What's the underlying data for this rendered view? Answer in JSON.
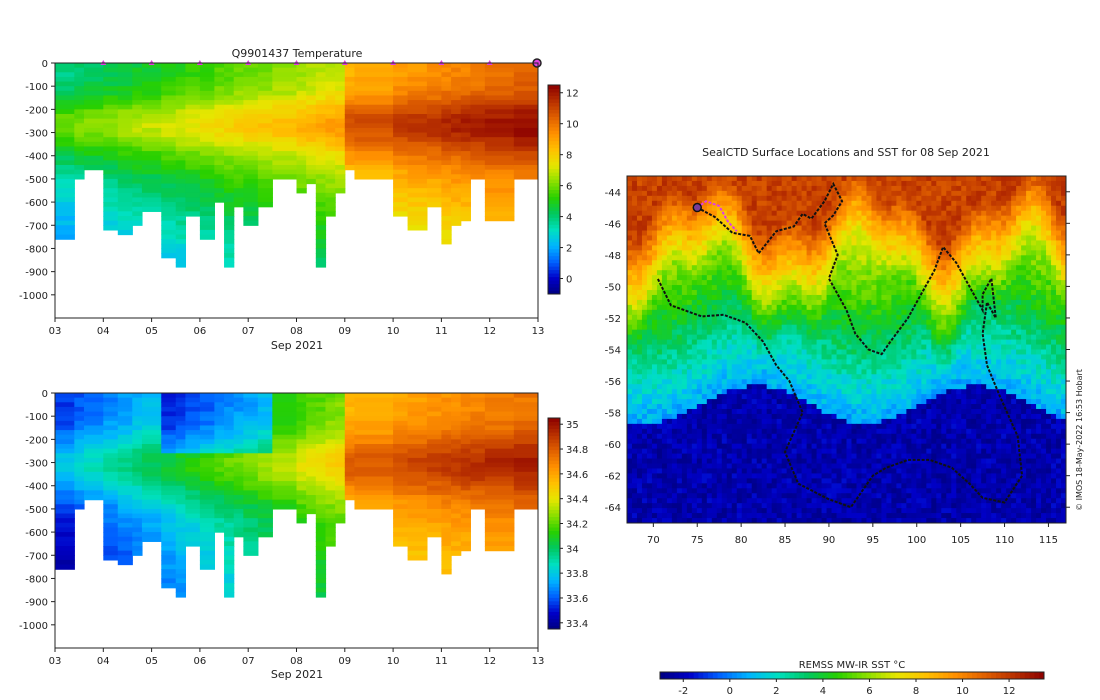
{
  "colors": {
    "jet": [
      "#000080",
      "#0000c8",
      "#0060ff",
      "#00b4ff",
      "#00e0c0",
      "#00c860",
      "#28d000",
      "#8ae000",
      "#e6e600",
      "#ffc000",
      "#ff9000",
      "#e06000",
      "#b83000",
      "#8c0000"
    ],
    "track": "#111111",
    "track_recent": "#e040e0",
    "marker": "#e040e0",
    "axis": "#222222",
    "surface_marker": "#7a3c99"
  },
  "chart_data": [
    {
      "id": "temperature-section",
      "type": "heatmap",
      "title": "Q9901437  Temperature",
      "xlabel": "Sep 2021",
      "ylabel": "",
      "x_ticks": [
        "03",
        "04",
        "05",
        "06",
        "07",
        "08",
        "09",
        "10",
        "11",
        "12",
        "13"
      ],
      "x_range": [
        3,
        13
      ],
      "y_ticks": [
        "0",
        "-100",
        "-200",
        "-300",
        "-400",
        "-500",
        "-600",
        "-700",
        "-800",
        "-900",
        "-1000"
      ],
      "y_range": [
        -1100,
        0
      ],
      "colorbar": {
        "min": -1,
        "max": 12.5,
        "ticks": [
          "12",
          "10",
          "8",
          "6",
          "4",
          "2",
          "0"
        ]
      },
      "surface_markers_day": [
        4,
        5,
        6,
        7,
        8,
        9,
        10,
        11,
        12
      ],
      "profiles": [
        {
          "t": 3.0,
          "w": 0.4,
          "depth": 750
        },
        {
          "t": 3.4,
          "w": 0.2,
          "depth": 500
        },
        {
          "t": 3.6,
          "w": 0.4,
          "depth": 450
        },
        {
          "t": 4.0,
          "w": 0.3,
          "depth": 710
        },
        {
          "t": 4.3,
          "w": 0.3,
          "depth": 730
        },
        {
          "t": 4.6,
          "w": 0.2,
          "depth": 700
        },
        {
          "t": 4.8,
          "w": 0.4,
          "depth": 640
        },
        {
          "t": 5.2,
          "w": 0.3,
          "depth": 840
        },
        {
          "t": 5.5,
          "w": 0.2,
          "depth": 870
        },
        {
          "t": 5.7,
          "w": 0.3,
          "depth": 650
        },
        {
          "t": 6.0,
          "w": 0.3,
          "depth": 760
        },
        {
          "t": 6.3,
          "w": 0.2,
          "depth": 600
        },
        {
          "t": 6.5,
          "w": 0.2,
          "depth": 870
        },
        {
          "t": 6.7,
          "w": 0.3,
          "depth": 610
        },
        {
          "t": 6.9,
          "w": 0.3,
          "depth": 700
        },
        {
          "t": 7.2,
          "w": 0.3,
          "depth": 610
        },
        {
          "t": 7.5,
          "w": 0.5,
          "depth": 500
        },
        {
          "t": 8.0,
          "w": 0.2,
          "depth": 550
        },
        {
          "t": 8.2,
          "w": 0.2,
          "depth": 520
        },
        {
          "t": 8.4,
          "w": 0.2,
          "depth": 880
        },
        {
          "t": 8.6,
          "w": 0.2,
          "depth": 660
        },
        {
          "t": 8.8,
          "w": 0.2,
          "depth": 560
        },
        {
          "t": 9.0,
          "w": 0.2,
          "depth": 460
        },
        {
          "t": 9.2,
          "w": 0.8,
          "depth": 500
        },
        {
          "t": 10.0,
          "w": 0.3,
          "depth": 660
        },
        {
          "t": 10.3,
          "w": 0.4,
          "depth": 710
        },
        {
          "t": 10.7,
          "w": 0.3,
          "depth": 620
        },
        {
          "t": 11.0,
          "w": 0.2,
          "depth": 770
        },
        {
          "t": 11.2,
          "w": 0.2,
          "depth": 700
        },
        {
          "t": 11.4,
          "w": 0.2,
          "depth": 680
        },
        {
          "t": 11.6,
          "w": 0.3,
          "depth": 500
        },
        {
          "t": 11.9,
          "w": 0.6,
          "depth": 670
        },
        {
          "t": 12.5,
          "w": 0.5,
          "depth": 500
        }
      ]
    },
    {
      "id": "salinity-section",
      "type": "heatmap",
      "title": "",
      "xlabel": "Sep 2021",
      "ylabel": "",
      "x_ticks": [
        "03",
        "04",
        "05",
        "06",
        "07",
        "08",
        "09",
        "10",
        "11",
        "12",
        "13"
      ],
      "x_range": [
        3,
        13
      ],
      "y_ticks": [
        "0",
        "-100",
        "-200",
        "-300",
        "-400",
        "-500",
        "-600",
        "-700",
        "-800",
        "-900",
        "-1000"
      ],
      "y_range": [
        -1100,
        0
      ],
      "colorbar": {
        "min": 33.35,
        "max": 35.05,
        "ticks": [
          "35",
          "34.8",
          "34.6",
          "34.4",
          "34.2",
          "34",
          "33.8",
          "33.6",
          "33.4"
        ]
      }
    },
    {
      "id": "sst-map",
      "type": "heatmap",
      "title": "SealCTD Surface Locations and SST for 08 Sep 2021",
      "xlabel": "",
      "ylabel": "",
      "x_ticks": [
        "70",
        "75",
        "80",
        "85",
        "90",
        "95",
        "100",
        "105",
        "110",
        "115"
      ],
      "x_range": [
        67,
        117
      ],
      "y_ticks": [
        "-44",
        "-46",
        "-48",
        "-50",
        "-52",
        "-54",
        "-56",
        "-58",
        "-60",
        "-62",
        "-64"
      ],
      "y_range": [
        -65,
        -43
      ],
      "colorbar": {
        "label": "REMSS MW-IR SST °C",
        "min": -3,
        "max": 13.5,
        "ticks": [
          "-2",
          "0",
          "2",
          "4",
          "6",
          "8",
          "10",
          "12"
        ]
      },
      "track_lonlat": [
        [
          75,
          -45
        ],
        [
          77,
          -45.6
        ],
        [
          79,
          -46.6
        ],
        [
          81,
          -46.8
        ],
        [
          82,
          -47.9
        ],
        [
          83,
          -47.2
        ],
        [
          84,
          -46.5
        ],
        [
          86,
          -46.2
        ],
        [
          87,
          -45.4
        ],
        [
          88,
          -45.7
        ],
        [
          89.5,
          -44.6
        ],
        [
          90.5,
          -43.5
        ],
        [
          91.5,
          -44.6
        ],
        [
          90.5,
          -45.5
        ],
        [
          89.5,
          -46
        ],
        [
          91,
          -48
        ],
        [
          90,
          -49.5
        ],
        [
          92,
          -51.5
        ],
        [
          93,
          -53
        ],
        [
          94.5,
          -54
        ],
        [
          96,
          -54.3
        ],
        [
          97,
          -53.5
        ],
        [
          99,
          -52
        ],
        [
          100,
          -51
        ],
        [
          102,
          -49
        ],
        [
          103,
          -47.5
        ],
        [
          104.5,
          -48.5
        ],
        [
          106,
          -50
        ],
        [
          107.5,
          -51.5
        ],
        [
          107.5,
          -50.5
        ],
        [
          108.5,
          -49.5
        ],
        [
          109,
          -52
        ],
        [
          108,
          -51
        ],
        [
          107.5,
          -53
        ],
        [
          108,
          -55
        ],
        [
          109.5,
          -57
        ],
        [
          111.5,
          -59.5
        ],
        [
          112,
          -62
        ],
        [
          110,
          -63.7
        ],
        [
          107.5,
          -63.4
        ],
        [
          106,
          -62.5
        ],
        [
          104,
          -61.5
        ],
        [
          101.5,
          -61
        ],
        [
          99,
          -61
        ],
        [
          96.5,
          -61.5
        ],
        [
          95,
          -62
        ],
        [
          92.5,
          -64
        ],
        [
          90,
          -63.5
        ],
        [
          86.5,
          -62.5
        ],
        [
          85,
          -60.5
        ],
        [
          87,
          -58
        ],
        [
          85.5,
          -56
        ],
        [
          84,
          -55
        ],
        [
          82.5,
          -53.5
        ],
        [
          80.5,
          -52.3
        ],
        [
          78,
          -51.8
        ],
        [
          75.5,
          -51.9
        ],
        [
          72,
          -51.2
        ],
        [
          70.5,
          -49.5
        ]
      ],
      "recent_track_lonlat": [
        [
          75,
          -45
        ],
        [
          76,
          -44.6
        ],
        [
          77.5,
          -44.9
        ],
        [
          78.5,
          -45.9
        ],
        [
          79.5,
          -46.5
        ]
      ],
      "current_position_lonlat": [
        75,
        -45
      ],
      "credit": "© IMOS 18-May-2022 16:53 Hobart"
    }
  ]
}
